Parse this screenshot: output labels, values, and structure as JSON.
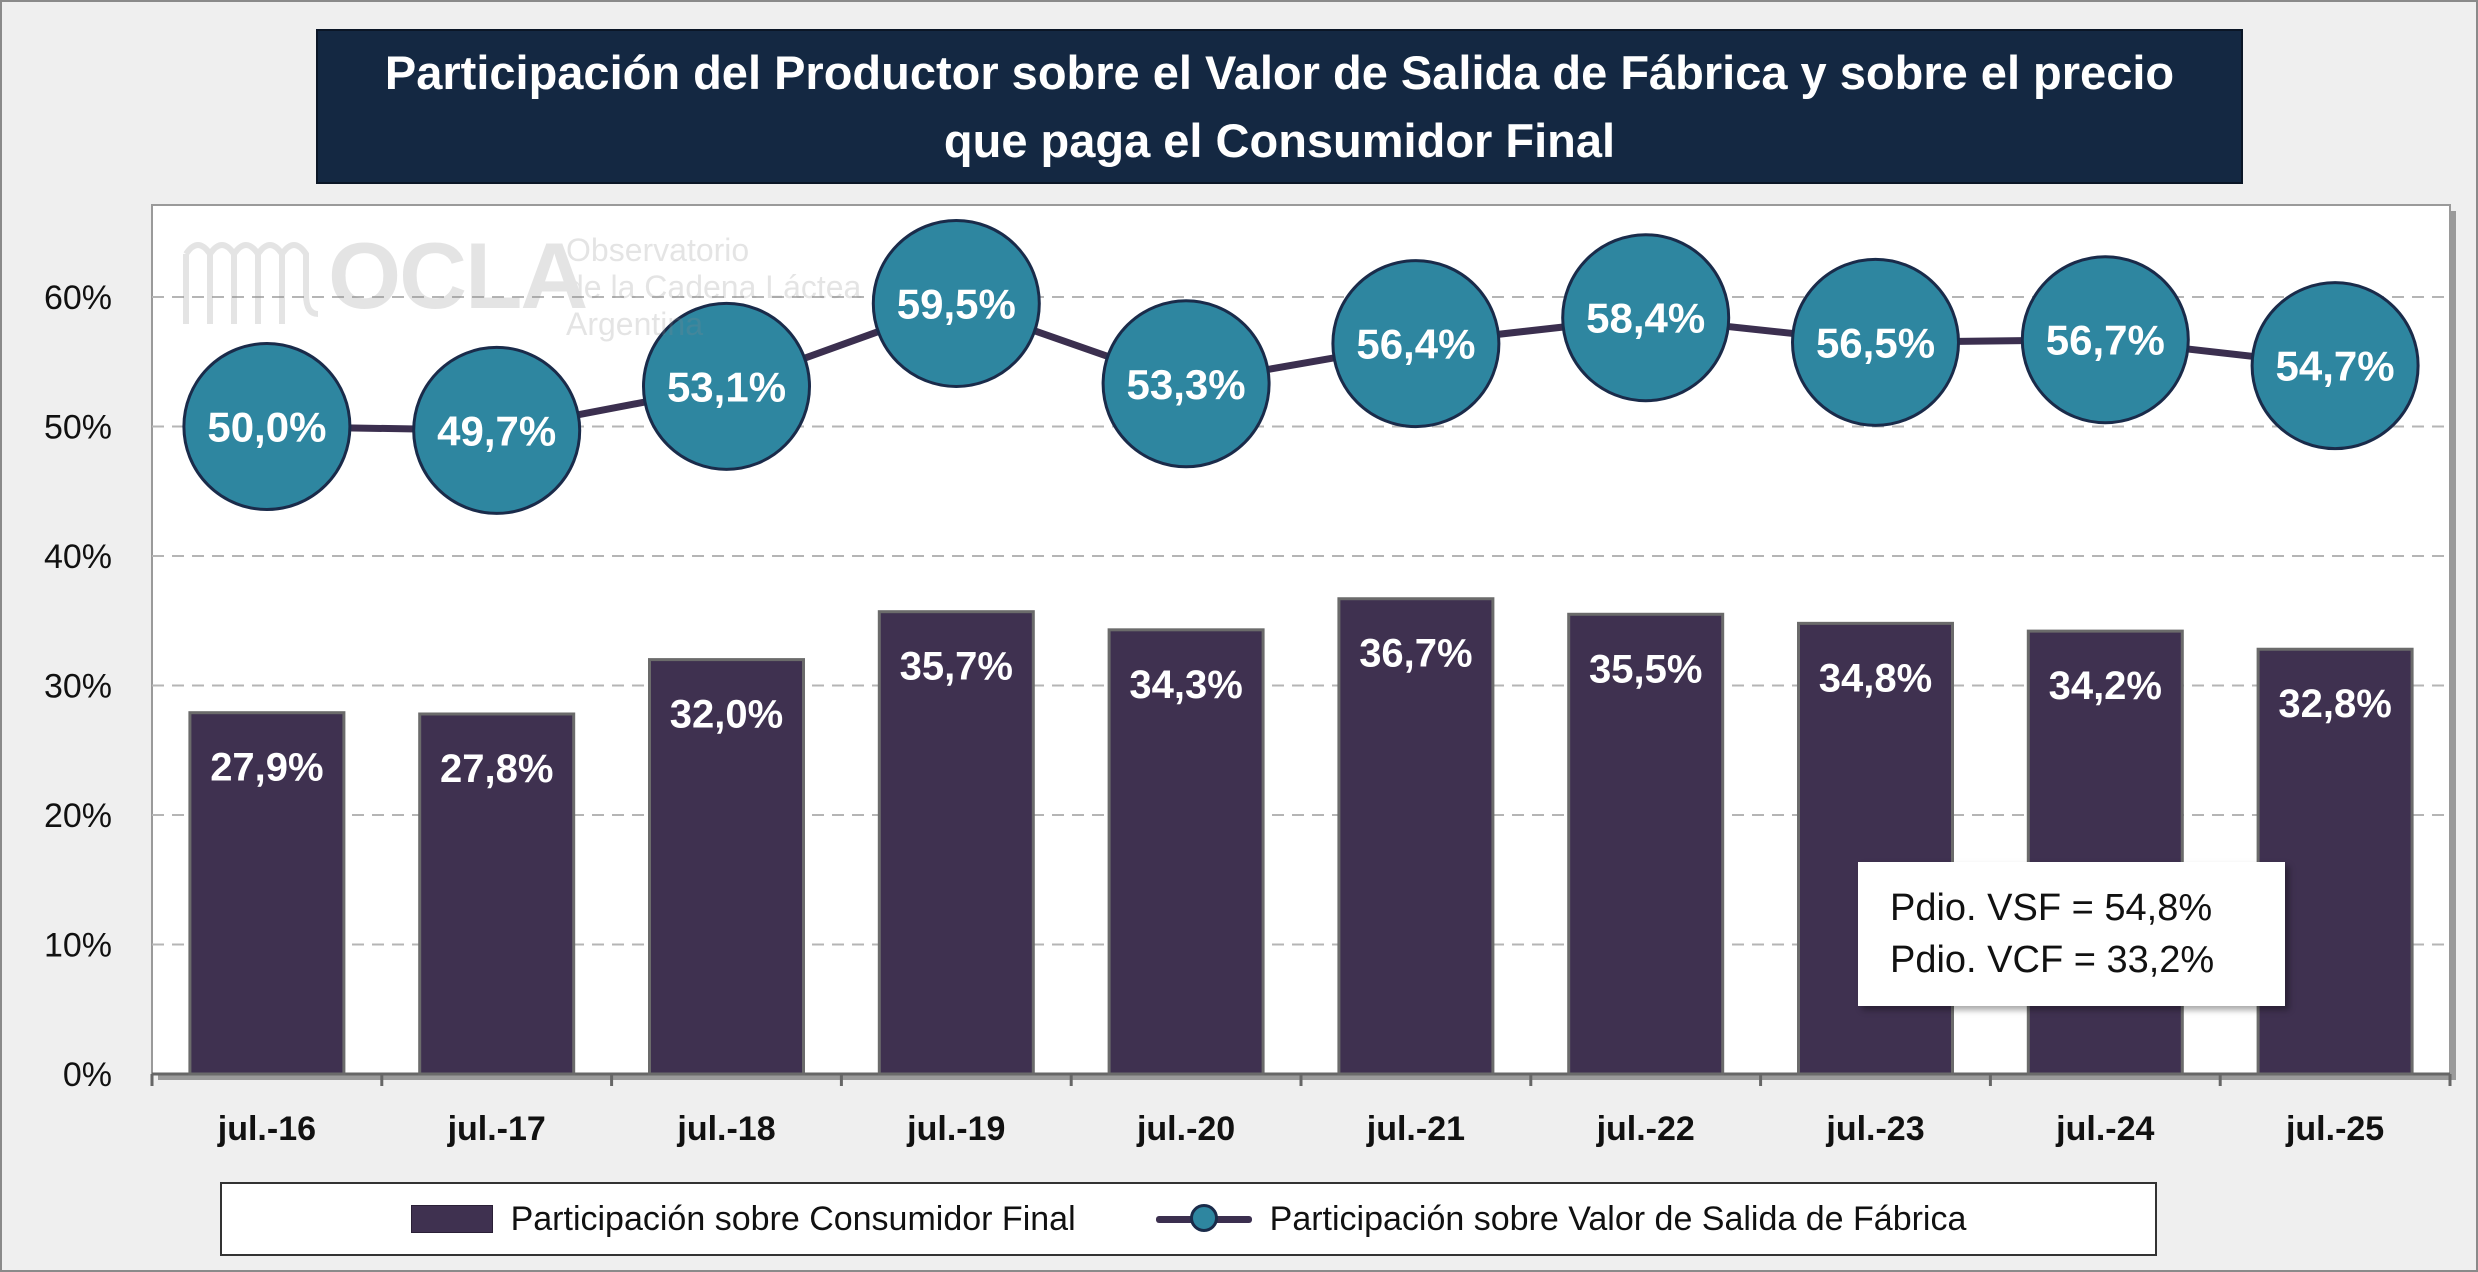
{
  "title": "Participación del Productor sobre el Valor de Salida de Fábrica y sobre el precio que paga el Consumidor Final",
  "watermark": {
    "logo": "OCLA",
    "lines": [
      "Observatorio",
      "de la Cadena Láctea",
      "Argentina"
    ]
  },
  "averages": {
    "vsf": "Pdio. VSF = 54,8%",
    "vcf": "Pdio. VCF = 33,2%"
  },
  "legend": {
    "bar_label": "Participación sobre Consumidor Final",
    "line_label": "Participación sobre Valor de Salida de Fábrica"
  },
  "colors": {
    "bar": "#3f3150",
    "bar_edge": "#6b6b6b",
    "line": "#3b2f4f",
    "marker_fill": "#2e86a0",
    "marker_edge": "#1a2b4a",
    "title_bg": "#142842"
  },
  "chart_data": {
    "type": "bar",
    "categories": [
      "jul.-16",
      "jul.-17",
      "jul.-18",
      "jul.-19",
      "jul.-20",
      "jul.-21",
      "jul.-22",
      "jul.-23",
      "jul.-24",
      "jul.-25"
    ],
    "series": [
      {
        "name": "Participación sobre Consumidor Final",
        "type": "bar",
        "values": [
          27.9,
          27.8,
          32.0,
          35.7,
          34.3,
          36.7,
          35.5,
          34.8,
          34.2,
          32.8
        ],
        "labels": [
          "27,9%",
          "27,8%",
          "32,0%",
          "35,7%",
          "34,3%",
          "36,7%",
          "35,5%",
          "34,8%",
          "34,2%",
          "32,8%"
        ]
      },
      {
        "name": "Participación sobre Valor de Salida de Fábrica",
        "type": "line",
        "values": [
          50.0,
          49.7,
          53.1,
          59.5,
          53.3,
          56.4,
          58.4,
          56.5,
          56.7,
          54.7
        ],
        "labels": [
          "50,0%",
          "49,7%",
          "53,1%",
          "59,5%",
          "53,3%",
          "56,4%",
          "58,4%",
          "56,5%",
          "56,7%",
          "54,7%"
        ]
      }
    ],
    "yticks": [
      "0%",
      "10%",
      "20%",
      "30%",
      "40%",
      "50%",
      "60%"
    ],
    "ylim": [
      0,
      67
    ],
    "grid": true,
    "legend_position": "bottom"
  }
}
